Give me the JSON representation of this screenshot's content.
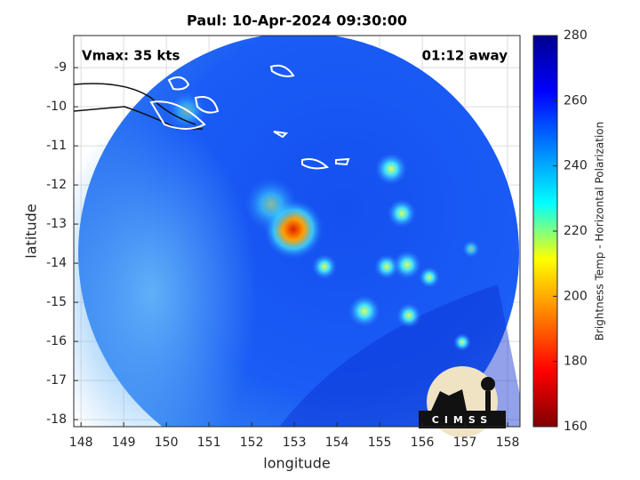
{
  "chart_data": {
    "type": "heatmap",
    "title": "Paul: 10-Apr-2024 09:30:00",
    "annotations": [
      "Vmax: 35 kts",
      "01:12 away"
    ],
    "xlabel": "longitude",
    "ylabel": "latitude",
    "xlim": [
      147.83,
      158.29
    ],
    "xticks": [
      148,
      149,
      150,
      151,
      152,
      153,
      154,
      155,
      156,
      157,
      158
    ],
    "ylim": [
      -18.18,
      -8.18
    ],
    "yticks": [
      -18,
      -17,
      -16,
      -15,
      -14,
      -13,
      -12,
      -11,
      -10,
      -9
    ],
    "grid": true,
    "colorbar": {
      "label": "Brightness Temp - Horizontal Polarization",
      "lim": [
        160,
        280
      ],
      "ticks": [
        160,
        180,
        200,
        220,
        240,
        260,
        280
      ],
      "colormap": [
        "#800000",
        "#ff0000",
        "#ff8000",
        "#ffff00",
        "#00ffff",
        "#0080ff",
        "#0000ff",
        "#00008f"
      ]
    },
    "logo": "CIMSS"
  }
}
